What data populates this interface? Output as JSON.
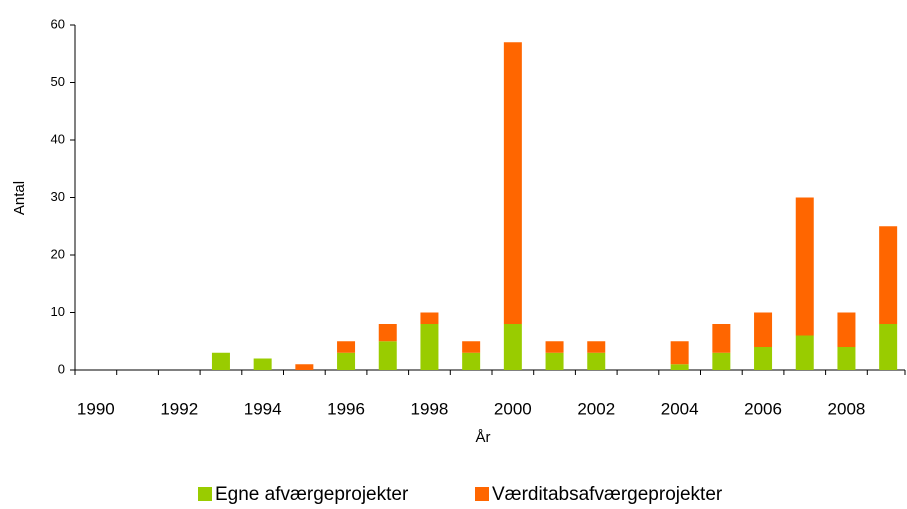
{
  "chart_data": {
    "type": "stacked_bar",
    "x_label": "År",
    "y_label": "Antal",
    "categories": [
      "1990",
      null,
      "1992",
      null,
      "1994",
      null,
      "1996",
      null,
      "1998",
      null,
      "2000",
      null,
      "2002",
      null,
      "2004",
      null,
      "2006",
      null,
      "2008",
      null
    ],
    "series": [
      {
        "name": "Egne afværgeprojekter",
        "color": "#99cc00",
        "values": [
          0,
          0,
          0,
          3,
          2,
          0,
          3,
          5,
          8,
          3,
          8,
          3,
          3,
          0,
          1,
          3,
          4,
          6,
          4,
          8
        ]
      },
      {
        "name": "Værditabsafværgeprojekter",
        "color": "#ff6600",
        "values": [
          0,
          0,
          0,
          0,
          0,
          1,
          2,
          3,
          2,
          2,
          49,
          2,
          2,
          0,
          4,
          5,
          6,
          24,
          6,
          17
        ]
      }
    ],
    "ylim": [
      0,
      60
    ],
    "yticks": [
      0,
      10,
      20,
      30,
      40,
      50,
      60
    ],
    "legend": "bottom"
  }
}
